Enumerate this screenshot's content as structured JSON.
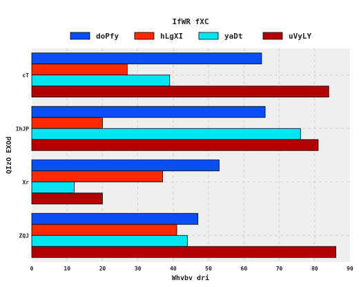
{
  "chart_data": {
    "type": "bar",
    "orientation": "horizontal",
    "title": "IfWR fXC",
    "xlabel": "Whvbv dri",
    "ylabel": "QIzO EXOd",
    "categories": [
      "cT",
      "IhJP",
      "Xr",
      "ZQJ"
    ],
    "series": [
      {
        "name": "doPfy",
        "color": "#0a4ff5",
        "values": [
          65,
          66,
          53,
          47
        ]
      },
      {
        "name": "hLgXI",
        "color": "#ff2a00",
        "values": [
          27,
          20,
          37,
          41
        ]
      },
      {
        "name": "yaDt",
        "color": "#00e5f0",
        "values": [
          39,
          76,
          12,
          44
        ]
      },
      {
        "name": "uVyLY",
        "color": "#b00000",
        "values": [
          84,
          81,
          20,
          86
        ]
      }
    ],
    "xlim": [
      0,
      90
    ],
    "xticks": [
      0,
      10,
      20,
      30,
      40,
      50,
      60,
      70,
      80,
      90
    ],
    "grid": true,
    "legend": "top-center",
    "background": "#efefef"
  }
}
